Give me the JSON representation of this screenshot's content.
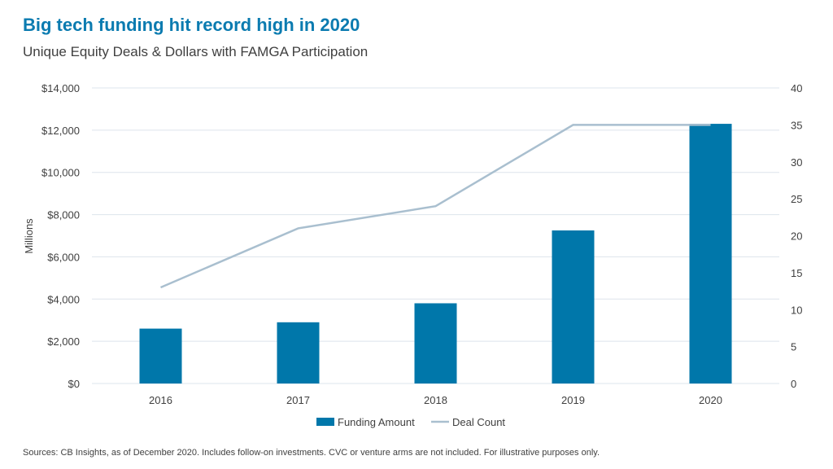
{
  "title": "Big tech funding hit record high in 2020",
  "subtitle": "Unique Equity Deals & Dollars with FAMGA Participation",
  "source": "Sources: CB Insights, as of December 2020. Includes follow-on investments. CVC or venture arms are not included. For illustrative purposes only.",
  "chart_data": {
    "type": "bar",
    "categories": [
      "2016",
      "2017",
      "2018",
      "2019",
      "2020"
    ],
    "series": [
      {
        "name": "Funding Amount",
        "type": "bar",
        "axis": "left",
        "color": "#0077aa",
        "values": [
          2600,
          2900,
          3800,
          7250,
          12300
        ]
      },
      {
        "name": "Deal Count",
        "type": "line",
        "axis": "right",
        "color": "#a9bfcf",
        "values": [
          13,
          21,
          24,
          35,
          35
        ]
      }
    ],
    "ylabel": "Millions",
    "ylim": [
      0,
      14000
    ],
    "yticks": [
      "$0",
      "$2,000",
      "$4,000",
      "$6,000",
      "$8,000",
      "$10,000",
      "$12,000",
      "$14,000"
    ],
    "y2lim": [
      0,
      40
    ],
    "y2ticks": [
      "0",
      "5",
      "10",
      "15",
      "20",
      "25",
      "30",
      "35",
      "40"
    ],
    "grid": true,
    "legend": "bottom"
  }
}
